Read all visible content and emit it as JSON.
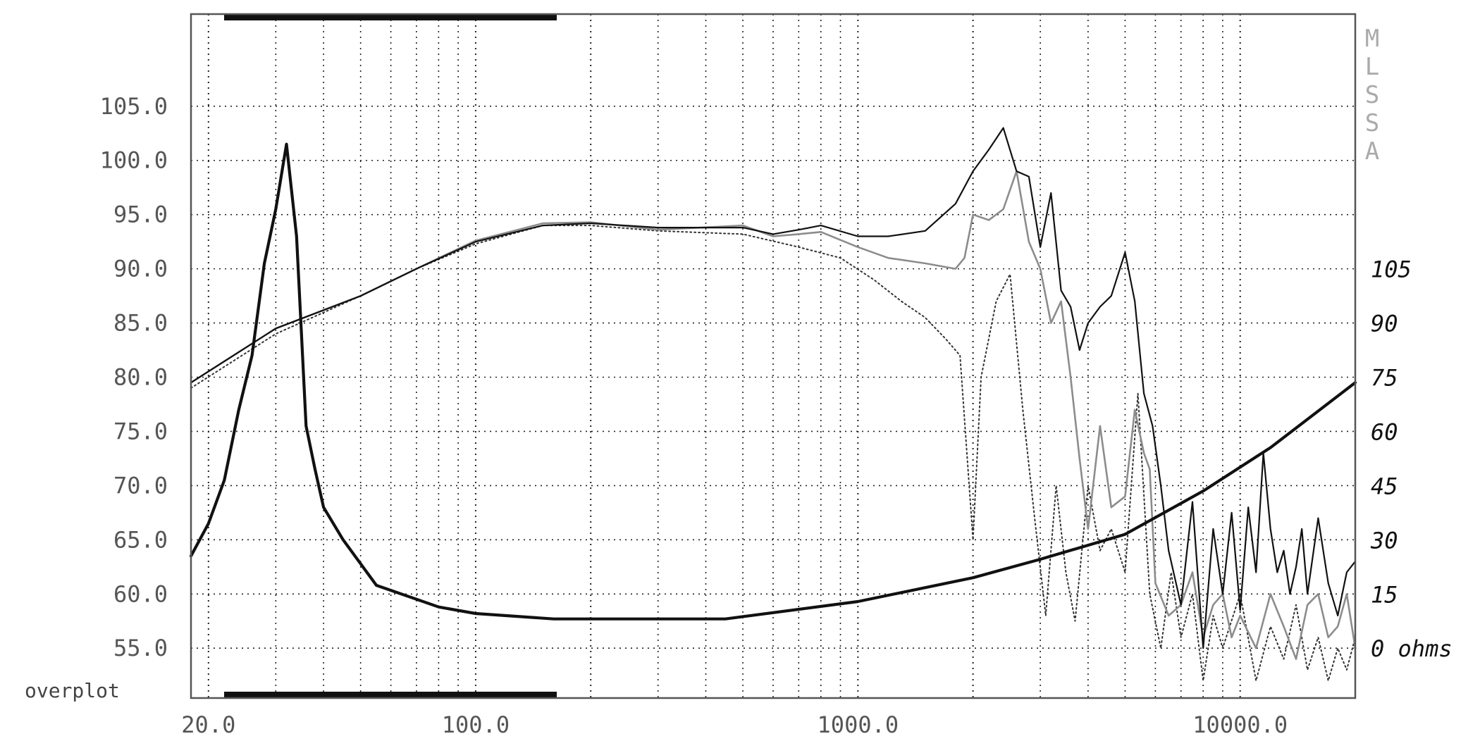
{
  "overplot_label": "overplot",
  "brand_letters": [
    "M",
    "L",
    "S",
    "S",
    "A"
  ],
  "colors": {
    "background": "#ffffff",
    "frame": "#555555",
    "grid": "#222222",
    "black_trace": "#111111",
    "gray_trace": "#8c8c8c",
    "dotted_trace": "#333333",
    "brand": "#aaaaaa"
  },
  "chart_data": {
    "type": "line",
    "title": "",
    "xlabel": "",
    "ylabel": "",
    "x_scale": "log",
    "xlim": [
      18,
      20000
    ],
    "ylim": [
      50.4,
      113.5
    ],
    "grid": true,
    "x_ticks": [
      {
        "value": 20,
        "label": "20.0"
      },
      {
        "value": 100,
        "label": "100.0"
      },
      {
        "value": 1000,
        "label": "1000.0"
      },
      {
        "value": 10000,
        "label": "10000.0"
      }
    ],
    "y_ticks": [
      {
        "value": 55,
        "label": "55.0"
      },
      {
        "value": 60,
        "label": "60.0"
      },
      {
        "value": 65,
        "label": "65.0"
      },
      {
        "value": 70,
        "label": "70.0"
      },
      {
        "value": 75,
        "label": "75.0"
      },
      {
        "value": 80,
        "label": "80.0"
      },
      {
        "value": 85,
        "label": "85.0"
      },
      {
        "value": 90,
        "label": "90.0"
      },
      {
        "value": 95,
        "label": "95.0"
      },
      {
        "value": 100,
        "label": "100.0"
      },
      {
        "value": 105,
        "label": "105.0"
      }
    ],
    "right_axis": {
      "unit": "ohms",
      "ticks": [
        {
          "value": 105,
          "label": "105",
          "y_equiv": 90
        },
        {
          "value": 90,
          "label": "90",
          "y_equiv": 85
        },
        {
          "value": 75,
          "label": "75",
          "y_equiv": 80
        },
        {
          "value": 60,
          "label": "60",
          "y_equiv": 75
        },
        {
          "value": 45,
          "label": "45",
          "y_equiv": 70
        },
        {
          "value": 30,
          "label": "30",
          "y_equiv": 65
        },
        {
          "value": 15,
          "label": "15",
          "y_equiv": 60
        },
        {
          "value": 0,
          "label": "0 ohms",
          "y_equiv": 55
        }
      ]
    },
    "series": [
      {
        "id": "impedance",
        "style": "black-thick",
        "x": [
          18,
          20,
          22,
          24,
          26,
          28,
          30,
          32,
          34,
          36,
          38,
          40,
          45,
          55,
          80,
          100,
          160,
          250,
          450,
          1000,
          2000,
          3000,
          5000,
          8000,
          12000,
          20000
        ],
        "y": [
          63.5,
          66.5,
          70.5,
          77,
          82,
          90.5,
          95.5,
          101.5,
          93,
          75.5,
          71.5,
          68,
          65,
          60.8,
          58.8,
          58.2,
          57.7,
          57.7,
          57.7,
          59.3,
          61.5,
          63.2,
          65.5,
          69.5,
          73.5,
          79.5
        ]
      },
      {
        "id": "on-axis-response",
        "style": "black-thin",
        "x": [
          18,
          30,
          50,
          70,
          100,
          150,
          200,
          300,
          500,
          600,
          700,
          800,
          1000,
          1200,
          1500,
          1800,
          2000,
          2200,
          2400,
          2600,
          2800,
          3000,
          3200,
          3400,
          3600,
          3800,
          4000,
          4300,
          4600,
          5000,
          5300,
          5600,
          5900,
          6200,
          6500,
          7000,
          7500,
          8000,
          8500,
          9000,
          9500,
          10000,
          10500,
          11000,
          11500,
          12000,
          12500,
          13000,
          13500,
          14000,
          14500,
          15000,
          16000,
          17000,
          18000,
          19000,
          20000
        ],
        "y": [
          79.5,
          84.5,
          87.5,
          90,
          92.5,
          94.0,
          94.2,
          93.8,
          93.8,
          93.2,
          93.6,
          94.0,
          93.0,
          93.0,
          93.5,
          96.0,
          99.0,
          101.0,
          103.0,
          99.0,
          98.5,
          92.0,
          97.0,
          88.0,
          86.5,
          82.5,
          85.0,
          86.5,
          87.5,
          91.5,
          87.0,
          78.5,
          75.5,
          70.0,
          64.0,
          59.0,
          68.5,
          55.0,
          66.0,
          60.0,
          67.5,
          58.5,
          68.0,
          62.0,
          73.0,
          66.0,
          62.0,
          64.0,
          60.0,
          62.5,
          66.0,
          60.0,
          67.0,
          61.0,
          58.0,
          62.0,
          63.0
        ]
      },
      {
        "id": "off-axis-response-1",
        "style": "gray-thin",
        "x": [
          18,
          30,
          50,
          70,
          100,
          150,
          200,
          300,
          500,
          600,
          700,
          800,
          1000,
          1200,
          1500,
          1800,
          1900,
          2000,
          2200,
          2400,
          2600,
          2800,
          3000,
          3200,
          3400,
          3600,
          3800,
          4000,
          4300,
          4600,
          5000,
          5300,
          5600,
          5800,
          6000,
          6500,
          7000,
          7500,
          8000,
          8500,
          9000,
          9500,
          10000,
          11000,
          12000,
          13000,
          14000,
          15000,
          16000,
          17000,
          18000,
          19000,
          20000
        ],
        "y": [
          79.5,
          84.5,
          87.5,
          90,
          92.6,
          94.2,
          94.3,
          93.6,
          94.0,
          93.0,
          93.2,
          93.4,
          92.0,
          91.0,
          90.5,
          90.0,
          91.0,
          95.0,
          94.5,
          95.5,
          99.0,
          92.5,
          90.0,
          85.0,
          87.0,
          80.0,
          72.5,
          66.0,
          75.5,
          68.0,
          69.0,
          77.0,
          73.0,
          71.5,
          61.0,
          58.0,
          59.0,
          62.0,
          56.0,
          59.0,
          60.0,
          56.0,
          58.0,
          55.0,
          60.0,
          57.0,
          54.0,
          59.0,
          60.0,
          56.0,
          57.0,
          60.0,
          55.0
        ]
      },
      {
        "id": "off-axis-response-2",
        "style": "black-dotted",
        "x": [
          18,
          30,
          50,
          70,
          100,
          150,
          200,
          300,
          500,
          700,
          900,
          1100,
          1300,
          1500,
          1700,
          1850,
          2000,
          2100,
          2300,
          2500,
          2700,
          2900,
          3100,
          3300,
          3500,
          3700,
          4000,
          4300,
          4600,
          5000,
          5400,
          5800,
          6200,
          6600,
          7000,
          7500,
          8000,
          8500,
          9000,
          10000,
          11000,
          12000,
          13000,
          14000,
          15000,
          16000,
          17000,
          18000,
          19000,
          20000
        ],
        "y": [
          79.0,
          84.0,
          87.5,
          90.0,
          92.3,
          94.0,
          94.0,
          93.5,
          93.2,
          92.0,
          91.0,
          89.0,
          87.0,
          85.5,
          83.5,
          82.0,
          65.0,
          80.0,
          87.0,
          89.5,
          77.0,
          67.0,
          58.0,
          70.0,
          62.0,
          57.5,
          70.0,
          64.0,
          66.0,
          62.0,
          78.5,
          60.0,
          55.0,
          62.0,
          56.0,
          60.0,
          52.0,
          58.0,
          55.0,
          60.0,
          52.0,
          57.0,
          54.0,
          59.0,
          53.0,
          56.0,
          52.0,
          55.0,
          53.0,
          56.0
        ]
      }
    ]
  }
}
